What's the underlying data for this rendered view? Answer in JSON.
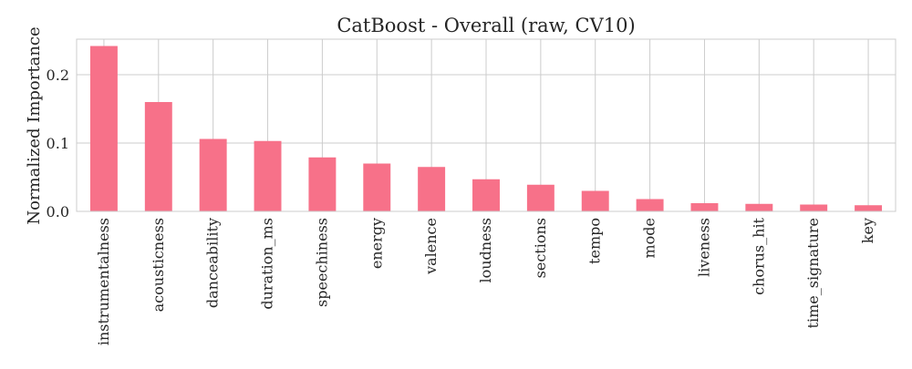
{
  "chart_data": {
    "type": "bar",
    "title": "CatBoost - Overall (raw, CV10)",
    "xlabel": "",
    "ylabel": "Normalized Importance",
    "categories": [
      "instrumentalness",
      "acousticness",
      "danceability",
      "duration_ms",
      "speechiness",
      "energy",
      "valence",
      "loudness",
      "sections",
      "tempo",
      "mode",
      "liveness",
      "chorus_hit",
      "time_signature",
      "key"
    ],
    "values": [
      0.242,
      0.16,
      0.106,
      0.103,
      0.079,
      0.07,
      0.065,
      0.047,
      0.039,
      0.03,
      0.018,
      0.012,
      0.011,
      0.01,
      0.009
    ],
    "ylim": [
      0,
      0.252
    ],
    "yticks": [
      0.0,
      0.1,
      0.2
    ],
    "ytick_labels": [
      "0.0",
      "0.1",
      "0.2"
    ],
    "grid": true,
    "legend": "none",
    "bar_color": "#f77189"
  }
}
